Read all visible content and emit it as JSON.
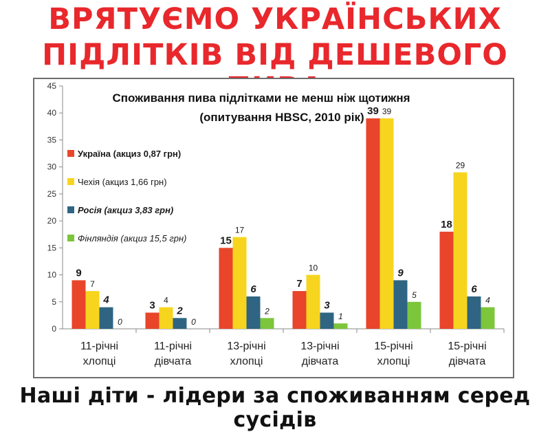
{
  "poster": {
    "headline_line1": "ВРЯТУЄМО УКРАЇНСЬКИХ",
    "headline_line2": "ПІДЛІТКІВ ВІД ДЕШЕВОГО ПИВА",
    "footer": "Наші діти - лідери за споживанням серед сусідів"
  },
  "chart_data": {
    "type": "bar",
    "title": "Споживання пива підлітками не менш ніж щотижня",
    "subtitle": "(опитування HBSC, 2010 рік)",
    "categories": [
      [
        "11-річні",
        "хлопці"
      ],
      [
        "11-річні",
        "дівчата"
      ],
      [
        "13-річні",
        "хлопці"
      ],
      [
        "13-річні",
        "дівчата"
      ],
      [
        "15-річні",
        "хлопці"
      ],
      [
        "15-річні",
        "дівчата"
      ]
    ],
    "series": [
      {
        "name": "Україна (акциз 0,87 грн)",
        "color": "#e8452b",
        "label_style": "bold",
        "values": [
          9,
          3,
          15,
          7,
          39,
          18
        ]
      },
      {
        "name": "Чехія (акциз 1,66 грн)",
        "color": "#f7d51f",
        "label_style": "normal",
        "values": [
          7,
          4,
          17,
          10,
          39,
          29
        ]
      },
      {
        "name": "Росія (акциз 3,83 грн)",
        "color": "#2f6583",
        "label_style": "bold-italic",
        "values": [
          4,
          2,
          6,
          3,
          9,
          6
        ]
      },
      {
        "name": "Фінляндія (акциз 15,5 грн)",
        "color": "#7cc63b",
        "label_style": "italic",
        "values": [
          0,
          0,
          2,
          1,
          5,
          4
        ]
      }
    ],
    "ylim": [
      0,
      45
    ],
    "yticks": [
      0,
      5,
      10,
      15,
      20,
      25,
      30,
      35,
      40,
      45
    ],
    "grid": false,
    "legend_position": "left"
  }
}
